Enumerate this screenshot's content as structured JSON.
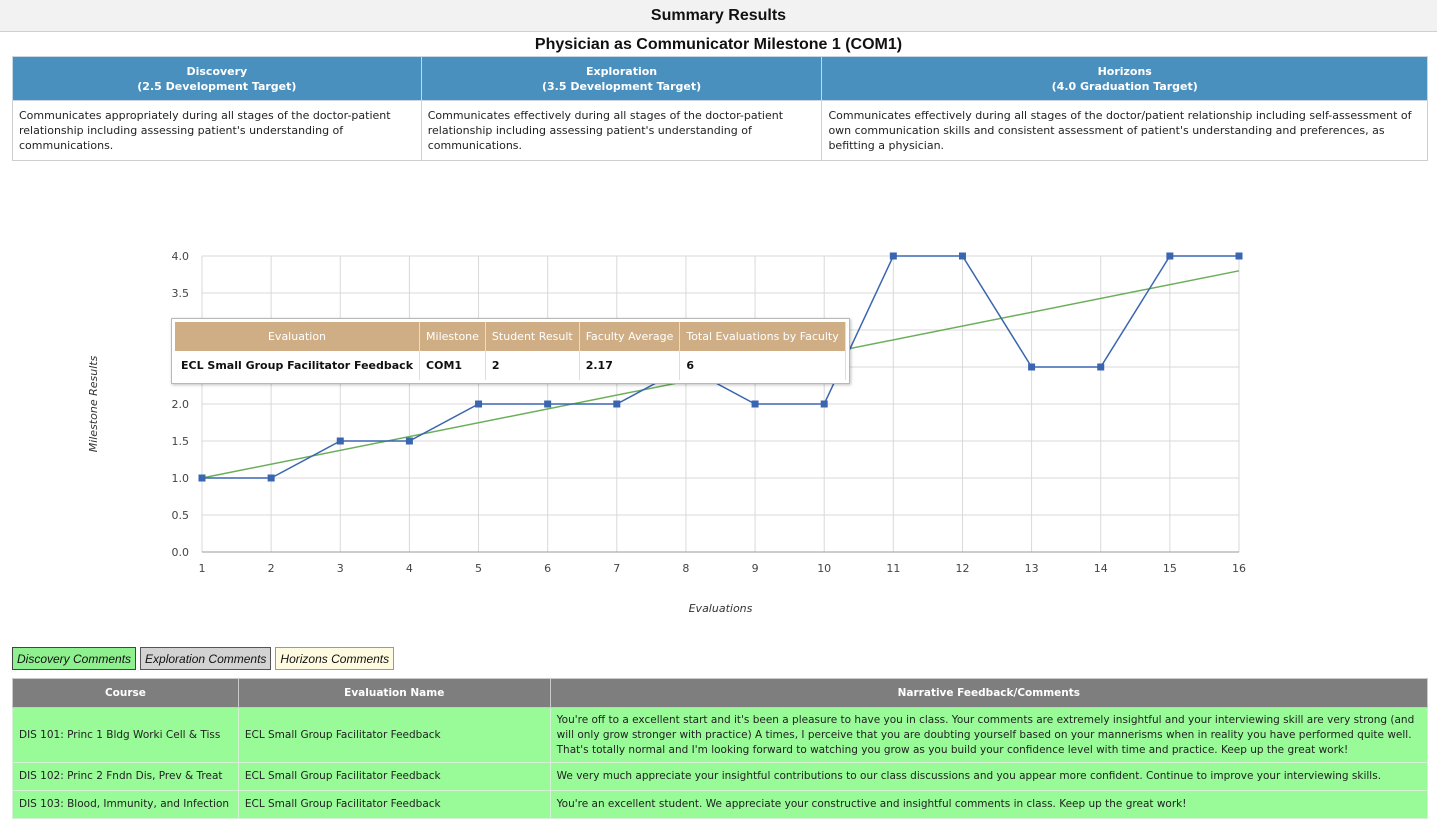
{
  "header": {
    "title": "Summary Results"
  },
  "milestone": {
    "title": "Physician as Communicator Milestone 1 (COM1)"
  },
  "levels": [
    {
      "name": "Discovery",
      "target": "(2.5 Development Target)",
      "description": "Communicates appropriately during all stages of the doctor-patient relationship including assessing patient's understanding of communications."
    },
    {
      "name": "Exploration",
      "target": "(3.5 Development Target)",
      "description": "Communicates effectively during all stages of the doctor-patient relationship including assessing patient's understanding of communications."
    },
    {
      "name": "Horizons",
      "target": "(4.0 Graduation Target)",
      "description": "Communicates effectively during all stages of the doctor/patient relationship including self-assessment of own communication skills and consistent assessment of patient's understanding and preferences, as befitting a physician."
    }
  ],
  "chart_data": {
    "type": "line",
    "xlabel": "Evaluations",
    "ylabel": "Milestone Results",
    "x": [
      1,
      2,
      3,
      4,
      5,
      6,
      7,
      8,
      9,
      10,
      11,
      12,
      13,
      14,
      15,
      16
    ],
    "ylim": [
      0,
      4
    ],
    "xlim": [
      1,
      16
    ],
    "ytick_labels": [
      "0.0",
      "0.5",
      "1.0",
      "1.5",
      "2.0",
      "2.5",
      "3.0",
      "3.5",
      "4.0"
    ],
    "xtick_labels": [
      "1",
      "2",
      "3",
      "4",
      "5",
      "6",
      "7",
      "8",
      "9",
      "10",
      "11",
      "12",
      "13",
      "14",
      "15",
      "16"
    ],
    "grid": true,
    "series": [
      {
        "values": [
          1,
          1,
          1.5,
          1.5,
          2,
          2,
          2,
          2.5,
          2,
          2,
          4,
          4,
          2.5,
          2.5,
          4,
          4
        ],
        "color": "#3a66b0"
      },
      {
        "trend_start": [
          1,
          1.0
        ],
        "trend_end": [
          16,
          3.8
        ],
        "color": "#6aae5a"
      }
    ]
  },
  "tooltip": {
    "headers": [
      "Evaluation",
      "Milestone",
      "Student Result",
      "Faculty Average",
      "Total Evaluations by Faculty"
    ],
    "row": [
      "ECL Small Group Facilitator Feedback",
      "COM1",
      "2",
      "2.17",
      "6"
    ]
  },
  "comment_tabs": {
    "discovery": "Discovery Comments",
    "exploration": "Exploration Comments",
    "horizons": "Horizons Comments"
  },
  "comments": {
    "headers": [
      "Course",
      "Evaluation Name",
      "Narrative Feedback/Comments"
    ],
    "rows": [
      {
        "course": "DIS 101: Princ 1 Bldg Worki Cell & Tiss",
        "evaluation": "ECL Small Group Facilitator Feedback",
        "feedback": "You're off to a excellent start and it's been a pleasure to have you in class. Your comments are extremely insightful and your interviewing skill are very strong (and will only grow stronger with practice) A times, I perceive that you are doubting yourself based on your mannerisms when in reality you have performed quite well. That's totally normal and I'm looking forward to watching you grow as you build your confidence level with time and practice. Keep up the great work!"
      },
      {
        "course": "DIS 102: Princ 2 Fndn Dis, Prev & Treat",
        "evaluation": "ECL Small Group Facilitator Feedback",
        "feedback": "We very much appreciate your insightful contributions to our class discussions and you appear more confident. Continue to improve your interviewing skills."
      },
      {
        "course": "DIS 103: Blood, Immunity, and Infection",
        "evaluation": "ECL Small Group Facilitator Feedback",
        "feedback": "You're an excellent student. We appreciate your constructive and insightful comments in class. Keep up the great work!"
      }
    ]
  }
}
